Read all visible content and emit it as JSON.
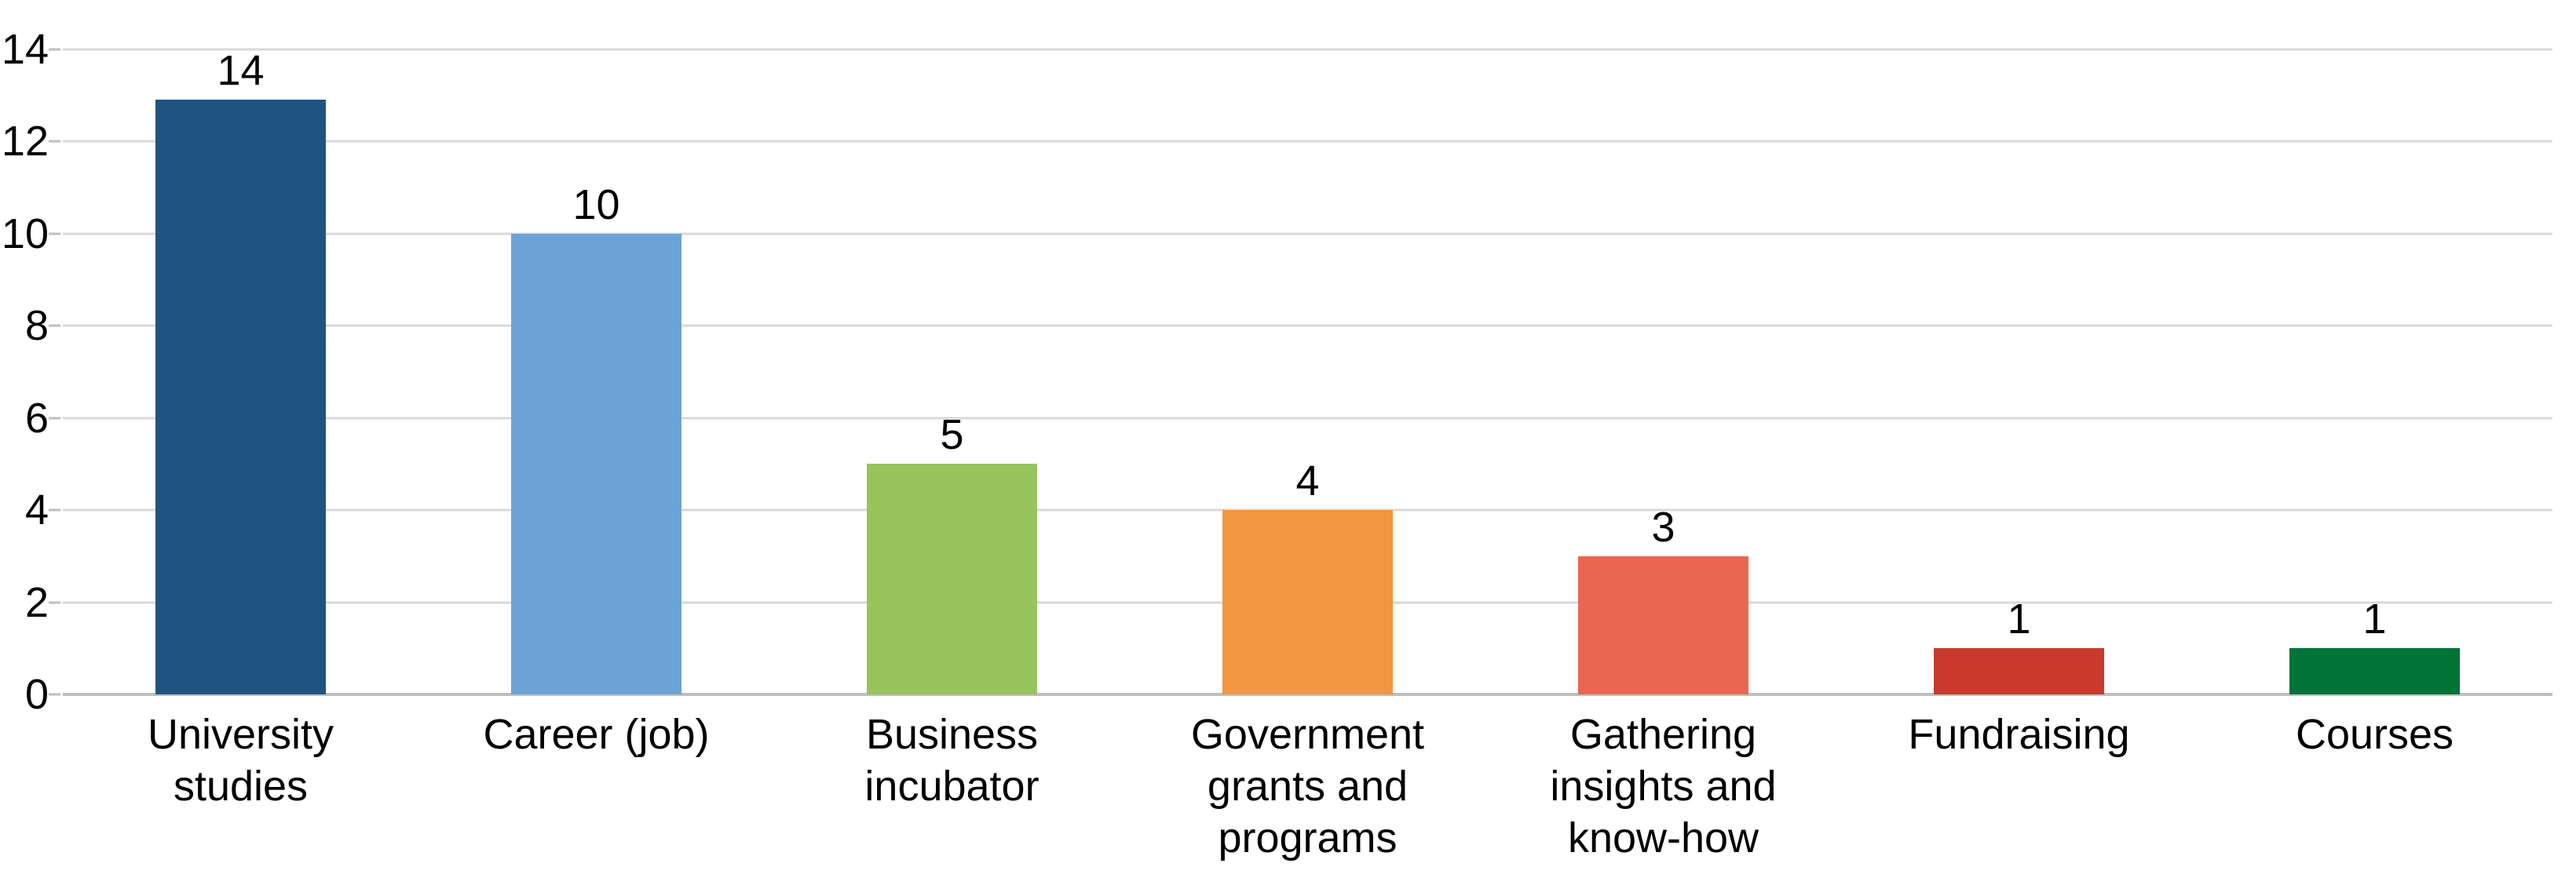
{
  "chart_data": {
    "type": "bar",
    "categories": [
      "University studies",
      "Career (job)",
      "Business incubator",
      "Government grants and programs",
      "Gathering insights and know-how",
      "Fundraising",
      "Courses"
    ],
    "categories_wrapped": [
      "University\nstudies",
      "Career (job)",
      "Business\nincubator",
      "Government\ngrants and\nprograms",
      "Gathering\ninsights and\nknow-how",
      "Fundraising",
      "Courses"
    ],
    "values": [
      14,
      10,
      5,
      4,
      3,
      1,
      1
    ],
    "bar_colors": [
      "#1F5480",
      "#6CA3D6",
      "#98C45D",
      "#F29640",
      "#EC664F",
      "#C93A2C",
      "#007336"
    ],
    "y_ticks": [
      0,
      2,
      4,
      6,
      8,
      10,
      12,
      14
    ],
    "ylim": [
      0,
      14
    ],
    "grid": true,
    "legend": false,
    "data_labels_shown": true
  },
  "styles": {
    "background": "#FFFFFF",
    "grid_color": "#D9D9D9",
    "baseline_color": "#BFBFBF",
    "axis_line_color": "#D9D9D9",
    "tick_mark_color": "#BFBFBF",
    "text_color": "#000000"
  }
}
